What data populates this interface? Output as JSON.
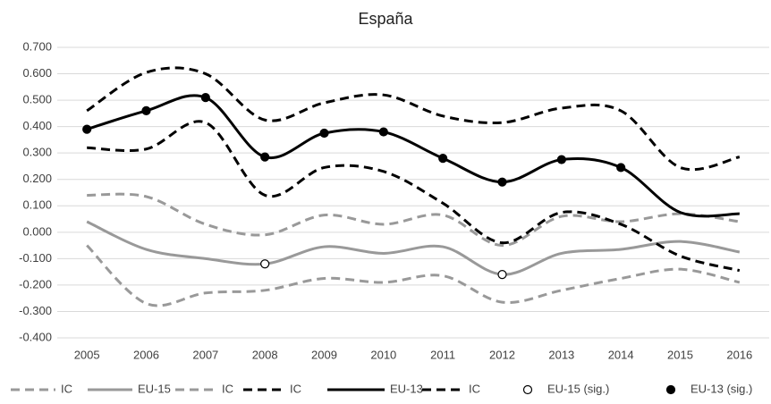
{
  "chart_data": {
    "type": "line",
    "title": "España",
    "categories": [
      "2005",
      "2006",
      "2007",
      "2008",
      "2009",
      "2010",
      "2011",
      "2012",
      "2013",
      "2014",
      "2015",
      "2016"
    ],
    "ylim": [
      -0.4,
      0.7
    ],
    "yticks": [
      {
        "value": -0.4,
        "label": "-0.400"
      },
      {
        "value": -0.3,
        "label": "-0.300"
      },
      {
        "value": -0.2,
        "label": "-0.200"
      },
      {
        "value": -0.1,
        "label": "-0.100"
      },
      {
        "value": 0,
        "label": "0.000"
      },
      {
        "value": 0.1,
        "label": "0.100"
      },
      {
        "value": 0.2,
        "label": "0.200"
      },
      {
        "value": 0.3,
        "label": "0.300"
      },
      {
        "value": 0.4,
        "label": "0.400"
      },
      {
        "value": 0.5,
        "label": "0.500"
      },
      {
        "value": 0.6,
        "label": "0.600"
      },
      {
        "value": 0.7,
        "label": "0.700"
      }
    ],
    "grid": true,
    "legend": "bottom",
    "series": [
      {
        "name": "IC",
        "color": "#999999",
        "dash": true,
        "values": [
          -0.05,
          -0.27,
          -0.23,
          -0.22,
          -0.175,
          -0.19,
          -0.165,
          -0.265,
          -0.22,
          -0.175,
          -0.14,
          -0.19
        ]
      },
      {
        "name": "EU-15",
        "color": "#999999",
        "dash": false,
        "values": [
          0.04,
          -0.065,
          -0.1,
          -0.12,
          -0.055,
          -0.08,
          -0.055,
          -0.16,
          -0.08,
          -0.065,
          -0.035,
          -0.075
        ]
      },
      {
        "name": "IC",
        "color": "#999999",
        "dash": true,
        "values": [
          0.14,
          0.135,
          0.03,
          -0.01,
          0.065,
          0.03,
          0.065,
          -0.05,
          0.06,
          0.04,
          0.07,
          0.04
        ]
      },
      {
        "name": "IC",
        "color": "#000000",
        "dash": true,
        "values": [
          0.32,
          0.315,
          0.415,
          0.14,
          0.245,
          0.23,
          0.11,
          -0.04,
          0.075,
          0.03,
          -0.09,
          -0.145
        ]
      },
      {
        "name": "EU-13",
        "color": "#000000",
        "dash": false,
        "values": [
          0.39,
          0.46,
          0.51,
          0.285,
          0.375,
          0.38,
          0.28,
          0.19,
          0.275,
          0.245,
          0.075,
          0.07
        ]
      },
      {
        "name": "IC",
        "color": "#000000",
        "dash": true,
        "values": [
          0.46,
          0.605,
          0.6,
          0.425,
          0.49,
          0.52,
          0.44,
          0.415,
          0.47,
          0.46,
          0.245,
          0.285
        ]
      },
      {
        "name": "EU-15 (sig.)",
        "color": "#000000",
        "marker": "open",
        "values": [
          null,
          null,
          null,
          -0.12,
          null,
          null,
          null,
          -0.16,
          null,
          null,
          null,
          null
        ]
      },
      {
        "name": "EU-13 (sig.)",
        "color": "#000000",
        "marker": "filled",
        "values": [
          0.39,
          0.46,
          0.51,
          0.285,
          0.375,
          0.38,
          0.28,
          0.19,
          0.275,
          0.245,
          null,
          null
        ]
      }
    ]
  }
}
